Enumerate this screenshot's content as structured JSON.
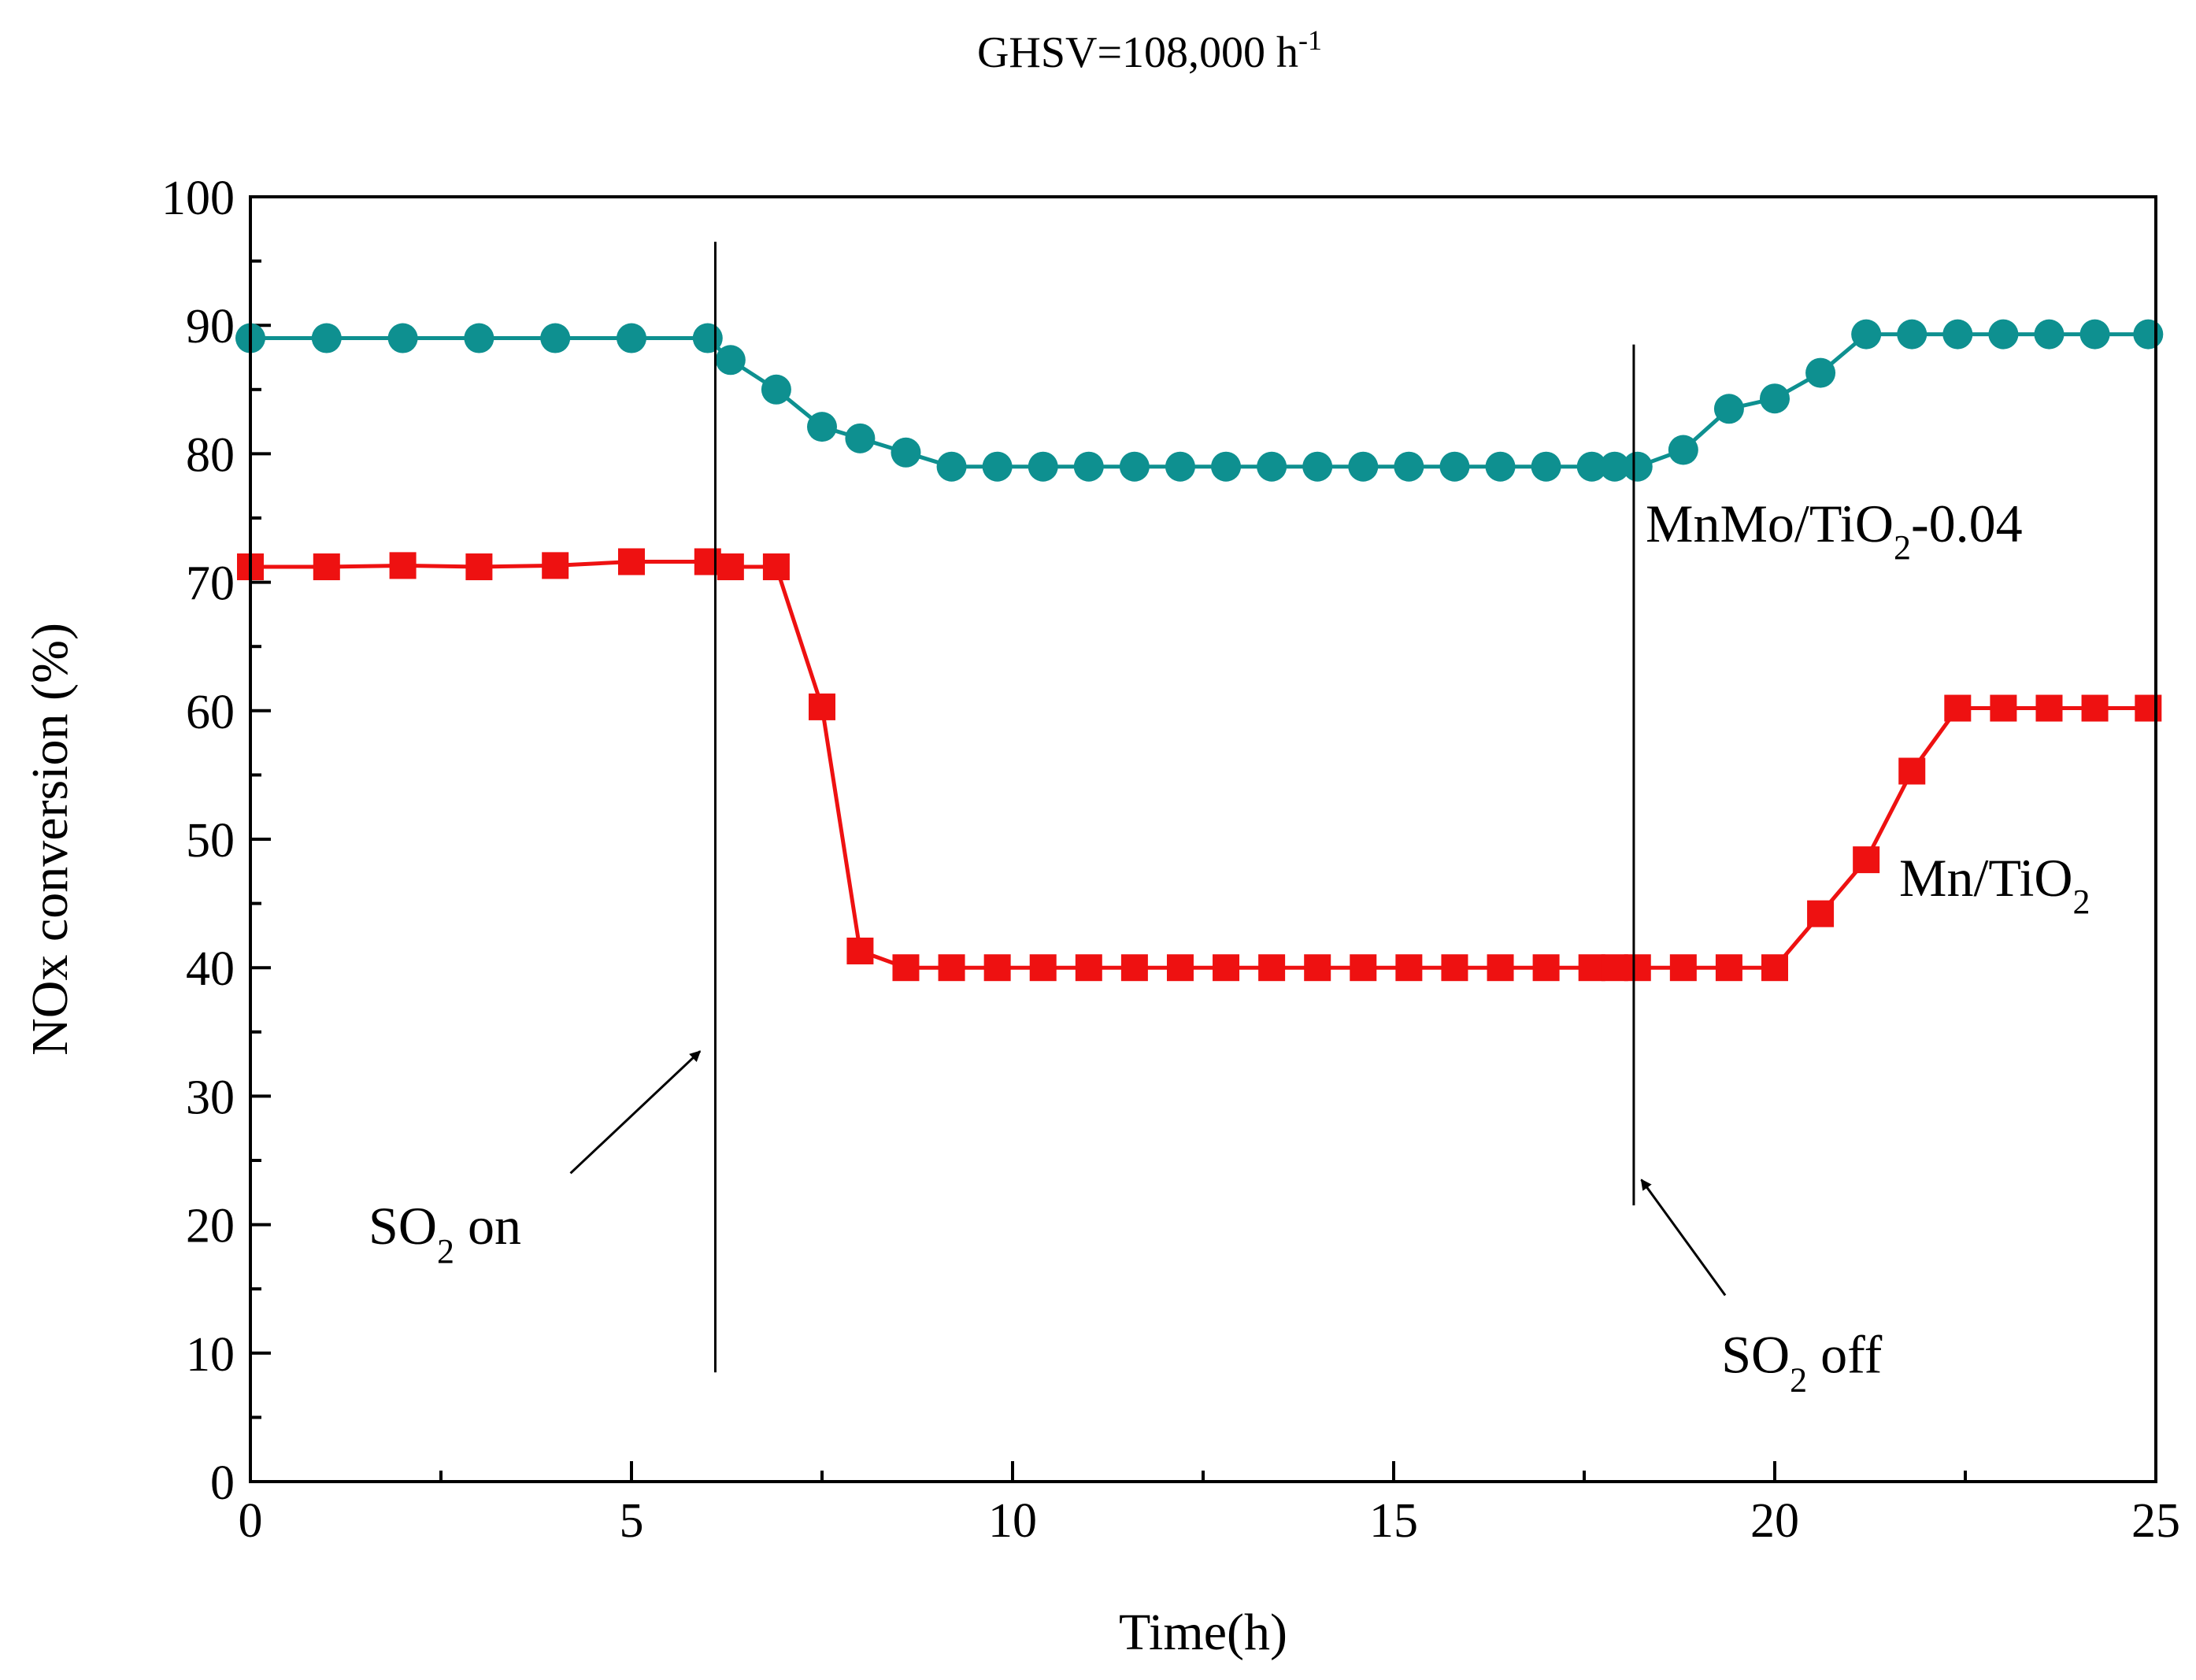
{
  "chart_data": {
    "type": "line",
    "title": "GHSV=108,000 h",
    "title_superscript": "-1",
    "xlabel": "Time(h)",
    "ylabel": "NOx conversion (%)",
    "xlim": [
      0,
      25
    ],
    "ylim": [
      0,
      100
    ],
    "x_ticks": [
      "0",
      "5",
      "10",
      "15",
      "20",
      "25"
    ],
    "y_ticks": [
      "0",
      "10",
      "20",
      "30",
      "40",
      "50",
      "60",
      "70",
      "80",
      "90",
      "100"
    ],
    "grid": false,
    "series": [
      {
        "name": "MnMo/TiO2-0.04",
        "label_main": "MnMo/TiO",
        "label_sub": "2",
        "label_tail": "-0.04",
        "marker": "circle",
        "color": "#0e9090",
        "x": [
          0,
          1,
          2,
          3,
          4,
          5,
          6,
          6.3,
          6.9,
          7.5,
          8.0,
          8.6,
          9.2,
          9.8,
          10.4,
          11.0,
          11.6,
          12.2,
          12.8,
          13.4,
          14.0,
          14.6,
          15.2,
          15.8,
          16.4,
          17.0,
          17.6,
          17.9,
          18.2,
          18.8,
          19.4,
          20.0,
          20.6,
          21.2,
          21.8,
          22.4,
          23.0,
          23.6,
          24.2,
          24.9
        ],
        "y": [
          89,
          89,
          89,
          89,
          89,
          89,
          89,
          87.3,
          85,
          82.1,
          81.2,
          80.1,
          79,
          79,
          79,
          79,
          79,
          79,
          79,
          79,
          79,
          79,
          79,
          79,
          79,
          79,
          79,
          79,
          79,
          80.3,
          83.5,
          84.3,
          86.3,
          89.3,
          89.3,
          89.3,
          89.3,
          89.3,
          89.3,
          89.3
        ]
      },
      {
        "name": "Mn/TiO2",
        "label_main": "Mn/TiO",
        "label_sub": "2",
        "label_tail": "",
        "marker": "square",
        "color": "#ee1111",
        "x": [
          0,
          1,
          2,
          3,
          4,
          5,
          6,
          6.3,
          6.9,
          7.5,
          8.0,
          8.6,
          9.2,
          9.8,
          10.4,
          11.0,
          11.6,
          12.2,
          12.8,
          13.4,
          14.0,
          14.6,
          15.2,
          15.8,
          16.4,
          17.0,
          17.6,
          17.9,
          18.2,
          18.8,
          19.4,
          20.0,
          20.6,
          21.2,
          21.8,
          22.4,
          23.0,
          23.6,
          24.2,
          24.9
        ],
        "y": [
          71.2,
          71.2,
          71.3,
          71.2,
          71.3,
          71.6,
          71.6,
          71.2,
          71.2,
          60.3,
          41.3,
          40,
          40,
          40,
          40,
          40,
          40,
          40,
          40,
          40,
          40,
          40,
          40,
          40,
          40,
          40,
          40,
          40,
          40,
          40,
          40,
          40,
          44.2,
          48.4,
          55.3,
          60.2,
          60.2,
          60.2,
          60.2,
          60.2
        ]
      }
    ],
    "annotations": [
      {
        "id": "so2-on",
        "main": "SO",
        "sub": "2",
        "tail": " on",
        "line_x": 6.1,
        "line_y": [
          8.5,
          96.5
        ],
        "arrow_from": [
          4.2,
          24
        ],
        "arrow_to": [
          5.9,
          33.5
        ],
        "text_at": [
          1.55,
          18.5
        ]
      },
      {
        "id": "so2-off",
        "main": "SO",
        "sub": "2",
        "tail": " off",
        "line_x": 18.15,
        "line_y": [
          21.5,
          88.5
        ],
        "arrow_from": [
          19.35,
          14.5
        ],
        "arrow_to": [
          18.25,
          23.5
        ],
        "text_at": [
          19.3,
          8.5
        ]
      }
    ]
  }
}
